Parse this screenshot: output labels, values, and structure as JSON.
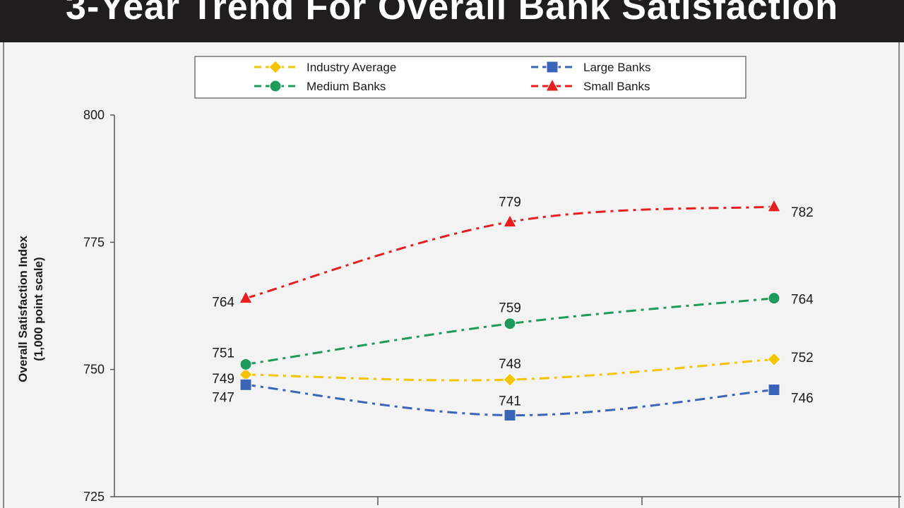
{
  "title": "3-Year Trend For Overall Bank Satisfaction",
  "chart_data": {
    "type": "line",
    "title": "3-Year Trend For Overall Bank Satisfaction",
    "xlabel": "",
    "ylabel": [
      "Overall Satisfaction Index",
      "(1,000 point scale)"
    ],
    "ylim": [
      725,
      800
    ],
    "yticks": [
      "725",
      "750",
      "775",
      "800"
    ],
    "categories": [
      "",
      "",
      ""
    ],
    "grid": false,
    "legend_position": "top",
    "series": [
      {
        "name": "Industry Average",
        "values": [
          749,
          748,
          752
        ],
        "color": "#f5c400",
        "marker": "diamond",
        "labels": [
          "749",
          "748",
          "752"
        ]
      },
      {
        "name": "Large Banks",
        "values": [
          747,
          741,
          746
        ],
        "color": "#3a64b8",
        "marker": "square",
        "labels": [
          "747",
          "741",
          "746"
        ]
      },
      {
        "name": "Medium Banks",
        "values": [
          751,
          759,
          764
        ],
        "color": "#1d9a5c",
        "marker": "circle",
        "labels": [
          "751",
          "759",
          "764"
        ]
      },
      {
        "name": "Small Banks",
        "values": [
          764,
          779,
          782
        ],
        "color": "#e62020",
        "marker": "triangle",
        "labels": [
          "764",
          "779",
          "782"
        ]
      }
    ]
  }
}
